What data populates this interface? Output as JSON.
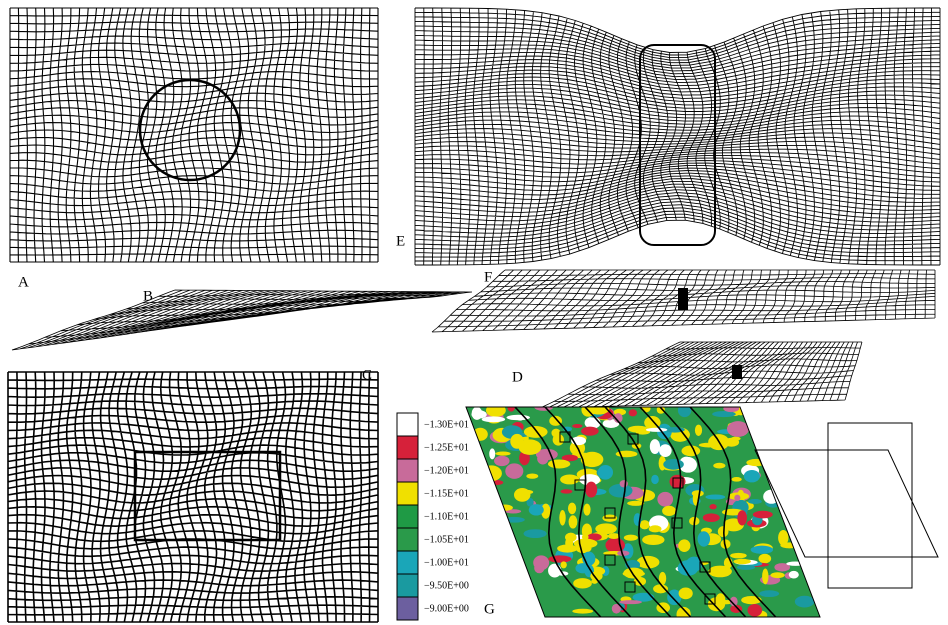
{
  "panels": [
    {
      "label": "A"
    },
    {
      "label": "B"
    },
    {
      "label": "C"
    },
    {
      "label": "D"
    },
    {
      "label": "E"
    },
    {
      "label": "F"
    },
    {
      "label": "G"
    }
  ],
  "legend": {
    "items": [
      {
        "label": "−1.30E+01",
        "color": "#ffffff"
      },
      {
        "label": "−1.25E+01",
        "color": "#d6213a"
      },
      {
        "label": "−1.20E+01",
        "color": "#c86b9a"
      },
      {
        "label": "−1.15E+01",
        "color": "#f0e000"
      },
      {
        "label": "−1.10E+01",
        "color": "#1f9a45"
      },
      {
        "label": "−1.05E+01",
        "color": "#2a9a4a"
      },
      {
        "label": "−1.00E+01",
        "color": "#1aa6b8"
      },
      {
        "label": "−9.50E+00",
        "color": "#1a9aa0"
      },
      {
        "label": "−9.00E+00",
        "color": "#6c5f9f"
      }
    ]
  }
}
